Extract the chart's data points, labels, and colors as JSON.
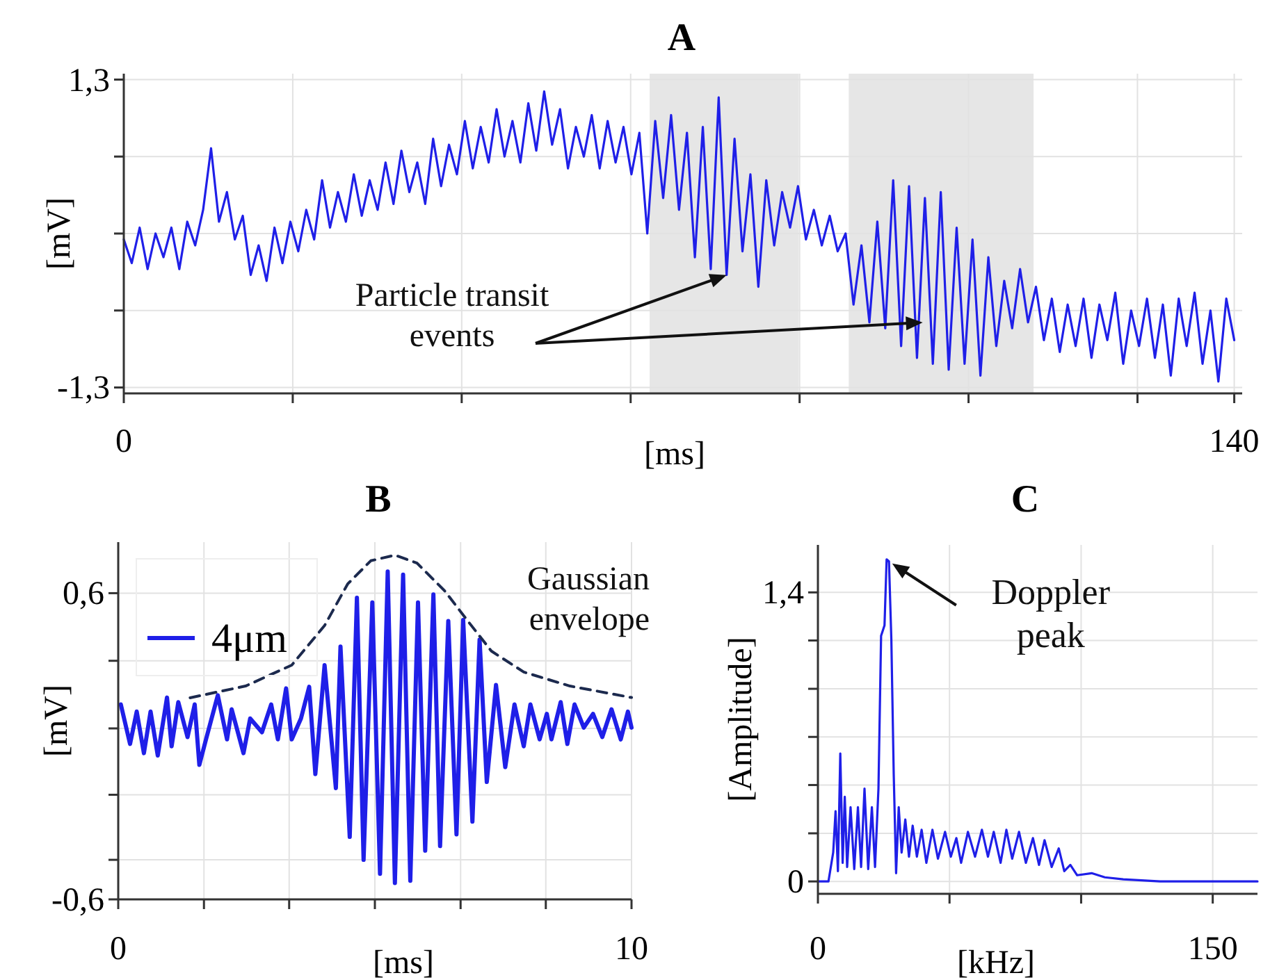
{
  "chart_data": [
    {
      "type": "line",
      "title": "A",
      "xlabel": "[ms]",
      "ylabel": "[mV]",
      "xlim": [
        0,
        141
      ],
      "ylim": [
        -1.35,
        1.35
      ],
      "xticks": [
        0,
        {
          "value": 21.3,
          "label": null
        },
        {
          "value": 42.6,
          "label": null
        },
        {
          "value": 63.9,
          "label": null
        },
        {
          "value": 85.2,
          "label": null
        },
        {
          "value": 106.5,
          "label": null
        },
        {
          "value": 127.8,
          "label": null
        },
        140
      ],
      "yticks": [
        {
          "value": -1.3,
          "label": "-1,3"
        },
        {
          "value": -0.65,
          "label": null
        },
        {
          "value": 0,
          "label": null
        },
        {
          "value": 0.65,
          "label": null
        },
        {
          "value": 1.3,
          "label": "1,3"
        }
      ],
      "grid": true,
      "bands": [
        {
          "axis": "x",
          "from": 66.3,
          "to": 85.1,
          "color": "#e6e6e6"
        },
        {
          "axis": "x",
          "from": 91.4,
          "to": 114.7,
          "color": "#e6e6e6"
        }
      ],
      "annotations": [
        {
          "text": "Particle transit\nevents",
          "x": 76,
          "y": -0.35
        }
      ],
      "series": [
        {
          "color": "#1f1fe8",
          "x": [
            0,
            1,
            2,
            3,
            4,
            5,
            6,
            7,
            8,
            9,
            10,
            11,
            12,
            13,
            14,
            15,
            16,
            17,
            18,
            19,
            20,
            21,
            22,
            23,
            24,
            25,
            26,
            27,
            28,
            29,
            30,
            31,
            32,
            33,
            34,
            35,
            36,
            37,
            38,
            39,
            40,
            41,
            42,
            43,
            44,
            45,
            46,
            47,
            48,
            49,
            50,
            51,
            52,
            53,
            54,
            55,
            56,
            57,
            58,
            59,
            60,
            61,
            62,
            63,
            64,
            65,
            66,
            67,
            68,
            69,
            70,
            71,
            72,
            73,
            74,
            75,
            76,
            77,
            78,
            79,
            80,
            81,
            82,
            83,
            84,
            85,
            86,
            87,
            88,
            89,
            90,
            91,
            92,
            93,
            94,
            95,
            96,
            97,
            98,
            99,
            100,
            101,
            102,
            103,
            104,
            105,
            106,
            107,
            108,
            109,
            110,
            111,
            112,
            113,
            114,
            115,
            116,
            117,
            118,
            119,
            120,
            121,
            122,
            123,
            124,
            125,
            126,
            127,
            128,
            129,
            130,
            131,
            132,
            133,
            134,
            135,
            136,
            137,
            138,
            139,
            140
          ],
          "values": [
            -0.05,
            -0.25,
            0.05,
            -0.3,
            0.0,
            -0.2,
            0.05,
            -0.3,
            0.1,
            -0.1,
            0.2,
            0.72,
            0.1,
            0.35,
            -0.05,
            0.15,
            -0.35,
            -0.1,
            -0.4,
            0.05,
            -0.25,
            0.1,
            -0.15,
            0.2,
            -0.05,
            0.45,
            0.05,
            0.35,
            0.1,
            0.5,
            0.15,
            0.45,
            0.2,
            0.6,
            0.25,
            0.7,
            0.35,
            0.6,
            0.25,
            0.8,
            0.4,
            0.75,
            0.5,
            0.95,
            0.55,
            0.9,
            0.6,
            1.05,
            0.65,
            0.95,
            0.6,
            1.1,
            0.7,
            1.2,
            0.75,
            1.05,
            0.55,
            0.9,
            0.65,
            1.0,
            0.55,
            0.95,
            0.6,
            0.9,
            0.5,
            0.85,
            0.0,
            0.95,
            0.3,
            1.0,
            0.2,
            0.85,
            -0.2,
            0.9,
            -0.3,
            1.15,
            -0.35,
            0.8,
            -0.15,
            0.5,
            -0.45,
            0.45,
            -0.1,
            0.35,
            0.05,
            0.4,
            -0.05,
            0.2,
            -0.1,
            0.15,
            -0.15,
            0.0,
            -0.6,
            -0.1,
            -0.75,
            0.1,
            -0.8,
            0.45,
            -0.95,
            0.4,
            -1.05,
            0.3,
            -1.1,
            0.35,
            -1.15,
            0.05,
            -1.1,
            -0.05,
            -1.2,
            -0.2,
            -0.95,
            -0.4,
            -0.8,
            -0.3,
            -0.75,
            -0.45,
            -0.9,
            -0.55,
            -1.0,
            -0.6,
            -0.95,
            -0.55,
            -1.05,
            -0.6,
            -0.9,
            -0.5,
            -1.1,
            -0.65,
            -0.95,
            -0.55,
            -1.05,
            -0.6,
            -1.2,
            -0.55,
            -0.95,
            -0.5,
            -1.1,
            -0.65,
            -1.25,
            -0.55,
            -0.9
          ]
        }
      ]
    },
    {
      "type": "line",
      "title": "B",
      "xlabel": "[ms]",
      "ylabel": "[mV]",
      "xlim": [
        0,
        10
      ],
      "ylim": [
        -0.6,
        0.8
      ],
      "xticks": [
        0,
        {
          "value": 1.67,
          "label": null
        },
        {
          "value": 3.33,
          "label": null
        },
        {
          "value": 5,
          "label": null
        },
        {
          "value": 6.67,
          "label": null
        },
        {
          "value": 8.33,
          "label": null
        },
        10
      ],
      "yticks": [
        {
          "value": -0.6,
          "label": "-0,6"
        },
        {
          "value": -0.445,
          "label": null
        },
        {
          "value": -0.19,
          "label": null
        },
        {
          "value": 0.07,
          "label": null
        },
        {
          "value": 0.335,
          "label": null
        },
        {
          "value": 0.6,
          "label": "0,6"
        }
      ],
      "grid": true,
      "legend": "top left",
      "annotations": [
        "Gaussian\nenvelope"
      ],
      "series": [
        {
          "name": "4μm",
          "color": "#1f1fe8",
          "x": [
            0.05,
            0.23,
            0.36,
            0.5,
            0.63,
            0.77,
            0.95,
            1.04,
            1.17,
            1.35,
            1.49,
            1.58,
            1.71,
            1.94,
            2.12,
            2.21,
            2.44,
            2.57,
            2.8,
            2.98,
            3.11,
            3.27,
            3.38,
            3.56,
            3.72,
            3.84,
            4.02,
            4.24,
            4.33,
            4.51,
            4.65,
            4.78,
            4.95,
            5.1,
            5.25,
            5.39,
            5.55,
            5.69,
            5.84,
            5.98,
            6.14,
            6.27,
            6.43,
            6.59,
            6.72,
            6.9,
            7.04,
            7.18,
            7.36,
            7.54,
            7.72,
            7.9,
            8.03,
            8.21,
            8.35,
            8.44,
            8.62,
            8.75,
            8.89,
            9.07,
            9.25,
            9.43,
            9.61,
            9.79,
            9.93,
            10.0
          ],
          "values": [
            0.164,
            0.009,
            0.136,
            -0.027,
            0.136,
            -0.036,
            0.191,
            0.0,
            0.173,
            0.036,
            0.164,
            -0.073,
            0.027,
            0.2,
            0.027,
            0.145,
            -0.027,
            0.109,
            0.055,
            0.164,
            0.027,
            0.227,
            0.027,
            0.109,
            0.233,
            -0.109,
            0.318,
            -0.164,
            0.391,
            -0.355,
            0.582,
            -0.445,
            0.564,
            -0.5,
            0.685,
            -0.536,
            0.673,
            -0.527,
            0.564,
            -0.409,
            0.595,
            -0.391,
            0.491,
            -0.345,
            0.495,
            -0.295,
            0.418,
            -0.14,
            0.24,
            -0.082,
            0.164,
            0.0,
            0.164,
            0.027,
            0.127,
            0.027,
            0.173,
            0.009,
            0.164,
            0.073,
            0.127,
            0.036,
            0.145,
            0.027,
            0.136,
            0.073
          ]
        },
        {
          "type": "line",
          "line_style": "dashed",
          "color": "#1c2a4e",
          "x": [
            1.4,
            2.48,
            3.38,
            4.02,
            4.47,
            4.92,
            5.39,
            5.82,
            6.36,
            6.81,
            7.27,
            7.9,
            8.8,
            10.0
          ],
          "values": [
            0.19,
            0.236,
            0.318,
            0.473,
            0.636,
            0.727,
            0.749,
            0.718,
            0.609,
            0.491,
            0.373,
            0.291,
            0.236,
            0.191
          ]
        }
      ]
    },
    {
      "type": "line",
      "title": "C",
      "xlabel": "[kHz]",
      "ylabel": "[Amplitude]",
      "xlim": [
        0,
        167
      ],
      "ylim": [
        -0.06,
        1.63
      ],
      "xticks": [
        0,
        {
          "value": 50,
          "label": null
        },
        {
          "value": 100,
          "label": null
        },
        150
      ],
      "yticks": [
        0,
        {
          "value": 0.233,
          "label": null
        },
        {
          "value": 0.467,
          "label": null
        },
        {
          "value": 0.7,
          "label": null
        },
        {
          "value": 0.933,
          "label": null
        },
        {
          "value": 1.167,
          "label": null
        },
        {
          "value": 1.4,
          "label": "1,4"
        }
      ],
      "grid": true,
      "annotations": [
        {
          "text": "Doppler\npeak",
          "x": 26.1,
          "y": 1.56
        }
      ],
      "series": [
        {
          "color": "#1f1fe8",
          "x": [
            0,
            4,
            5.8,
            6.7,
            7.6,
            8.5,
            9.4,
            10.2,
            11.1,
            12.4,
            13.8,
            15.2,
            16.4,
            17.7,
            19.1,
            20.5,
            21.7,
            23,
            24,
            25.3,
            26.1,
            27,
            27.9,
            28.8,
            29.7,
            30.7,
            31.8,
            33.2,
            34.6,
            36,
            37.6,
            39.4,
            41.2,
            43.5,
            45.6,
            48.3,
            50.5,
            52.6,
            54.4,
            57,
            59.7,
            62.3,
            64.6,
            66.8,
            69.4,
            71.6,
            73.8,
            76.4,
            79,
            81.7,
            84,
            86.1,
            88.8,
            91.5,
            93.6,
            95.9,
            98.5,
            104,
            109,
            116,
            130,
            167
          ],
          "values": [
            0,
            0,
            0.14,
            0.34,
            0.05,
            0.62,
            0.09,
            0.41,
            0.07,
            0.36,
            0.06,
            0.36,
            0.07,
            0.45,
            0.06,
            0.36,
            0.07,
            0.45,
            1.19,
            1.24,
            1.56,
            1.55,
            1.17,
            0.52,
            0.04,
            0.36,
            0.14,
            0.3,
            0.12,
            0.27,
            0.12,
            0.25,
            0.09,
            0.25,
            0.11,
            0.24,
            0.12,
            0.21,
            0.09,
            0.24,
            0.12,
            0.25,
            0.12,
            0.24,
            0.09,
            0.25,
            0.11,
            0.24,
            0.09,
            0.21,
            0.08,
            0.2,
            0.07,
            0.16,
            0.05,
            0.08,
            0.03,
            0.04,
            0.02,
            0.01,
            0,
            0
          ]
        }
      ]
    }
  ]
}
